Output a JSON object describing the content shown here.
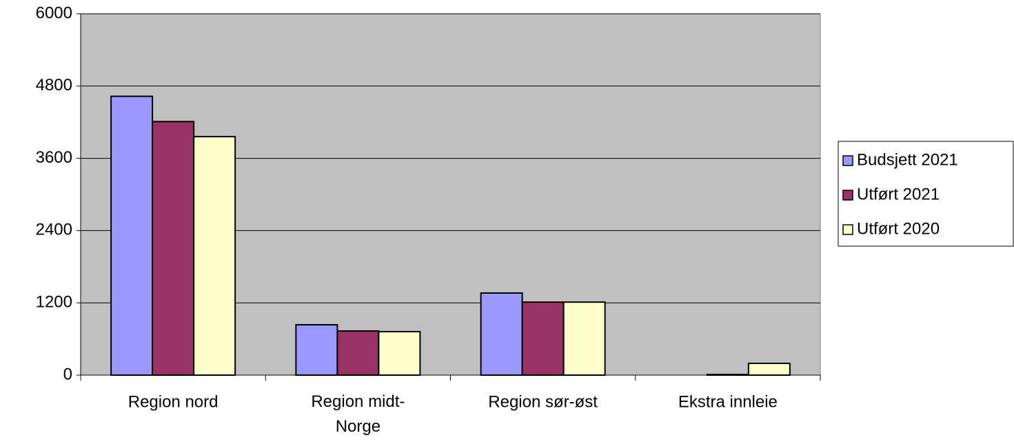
{
  "chart_data": {
    "type": "bar",
    "categories": [
      "Region nord",
      "Region midt-Norge",
      "Region sør-øst",
      "Ekstra innleie"
    ],
    "series": [
      {
        "name": "Budsjett 2021",
        "color": "#9999ff",
        "values": [
          4630,
          836,
          1363,
          0
        ]
      },
      {
        "name": "Utført 2021",
        "color": "#993366",
        "values": [
          4210,
          733,
          1212,
          10
        ]
      },
      {
        "name": "Utført 2020",
        "color": "#ffffcc",
        "values": [
          3960,
          722,
          1212,
          195
        ]
      }
    ],
    "ylim": [
      0,
      6000
    ],
    "yticks": [
      0,
      1200,
      2400,
      3600,
      4800,
      6000
    ],
    "grid": true,
    "plot_background": "#c0c0c0",
    "legend": "right"
  }
}
